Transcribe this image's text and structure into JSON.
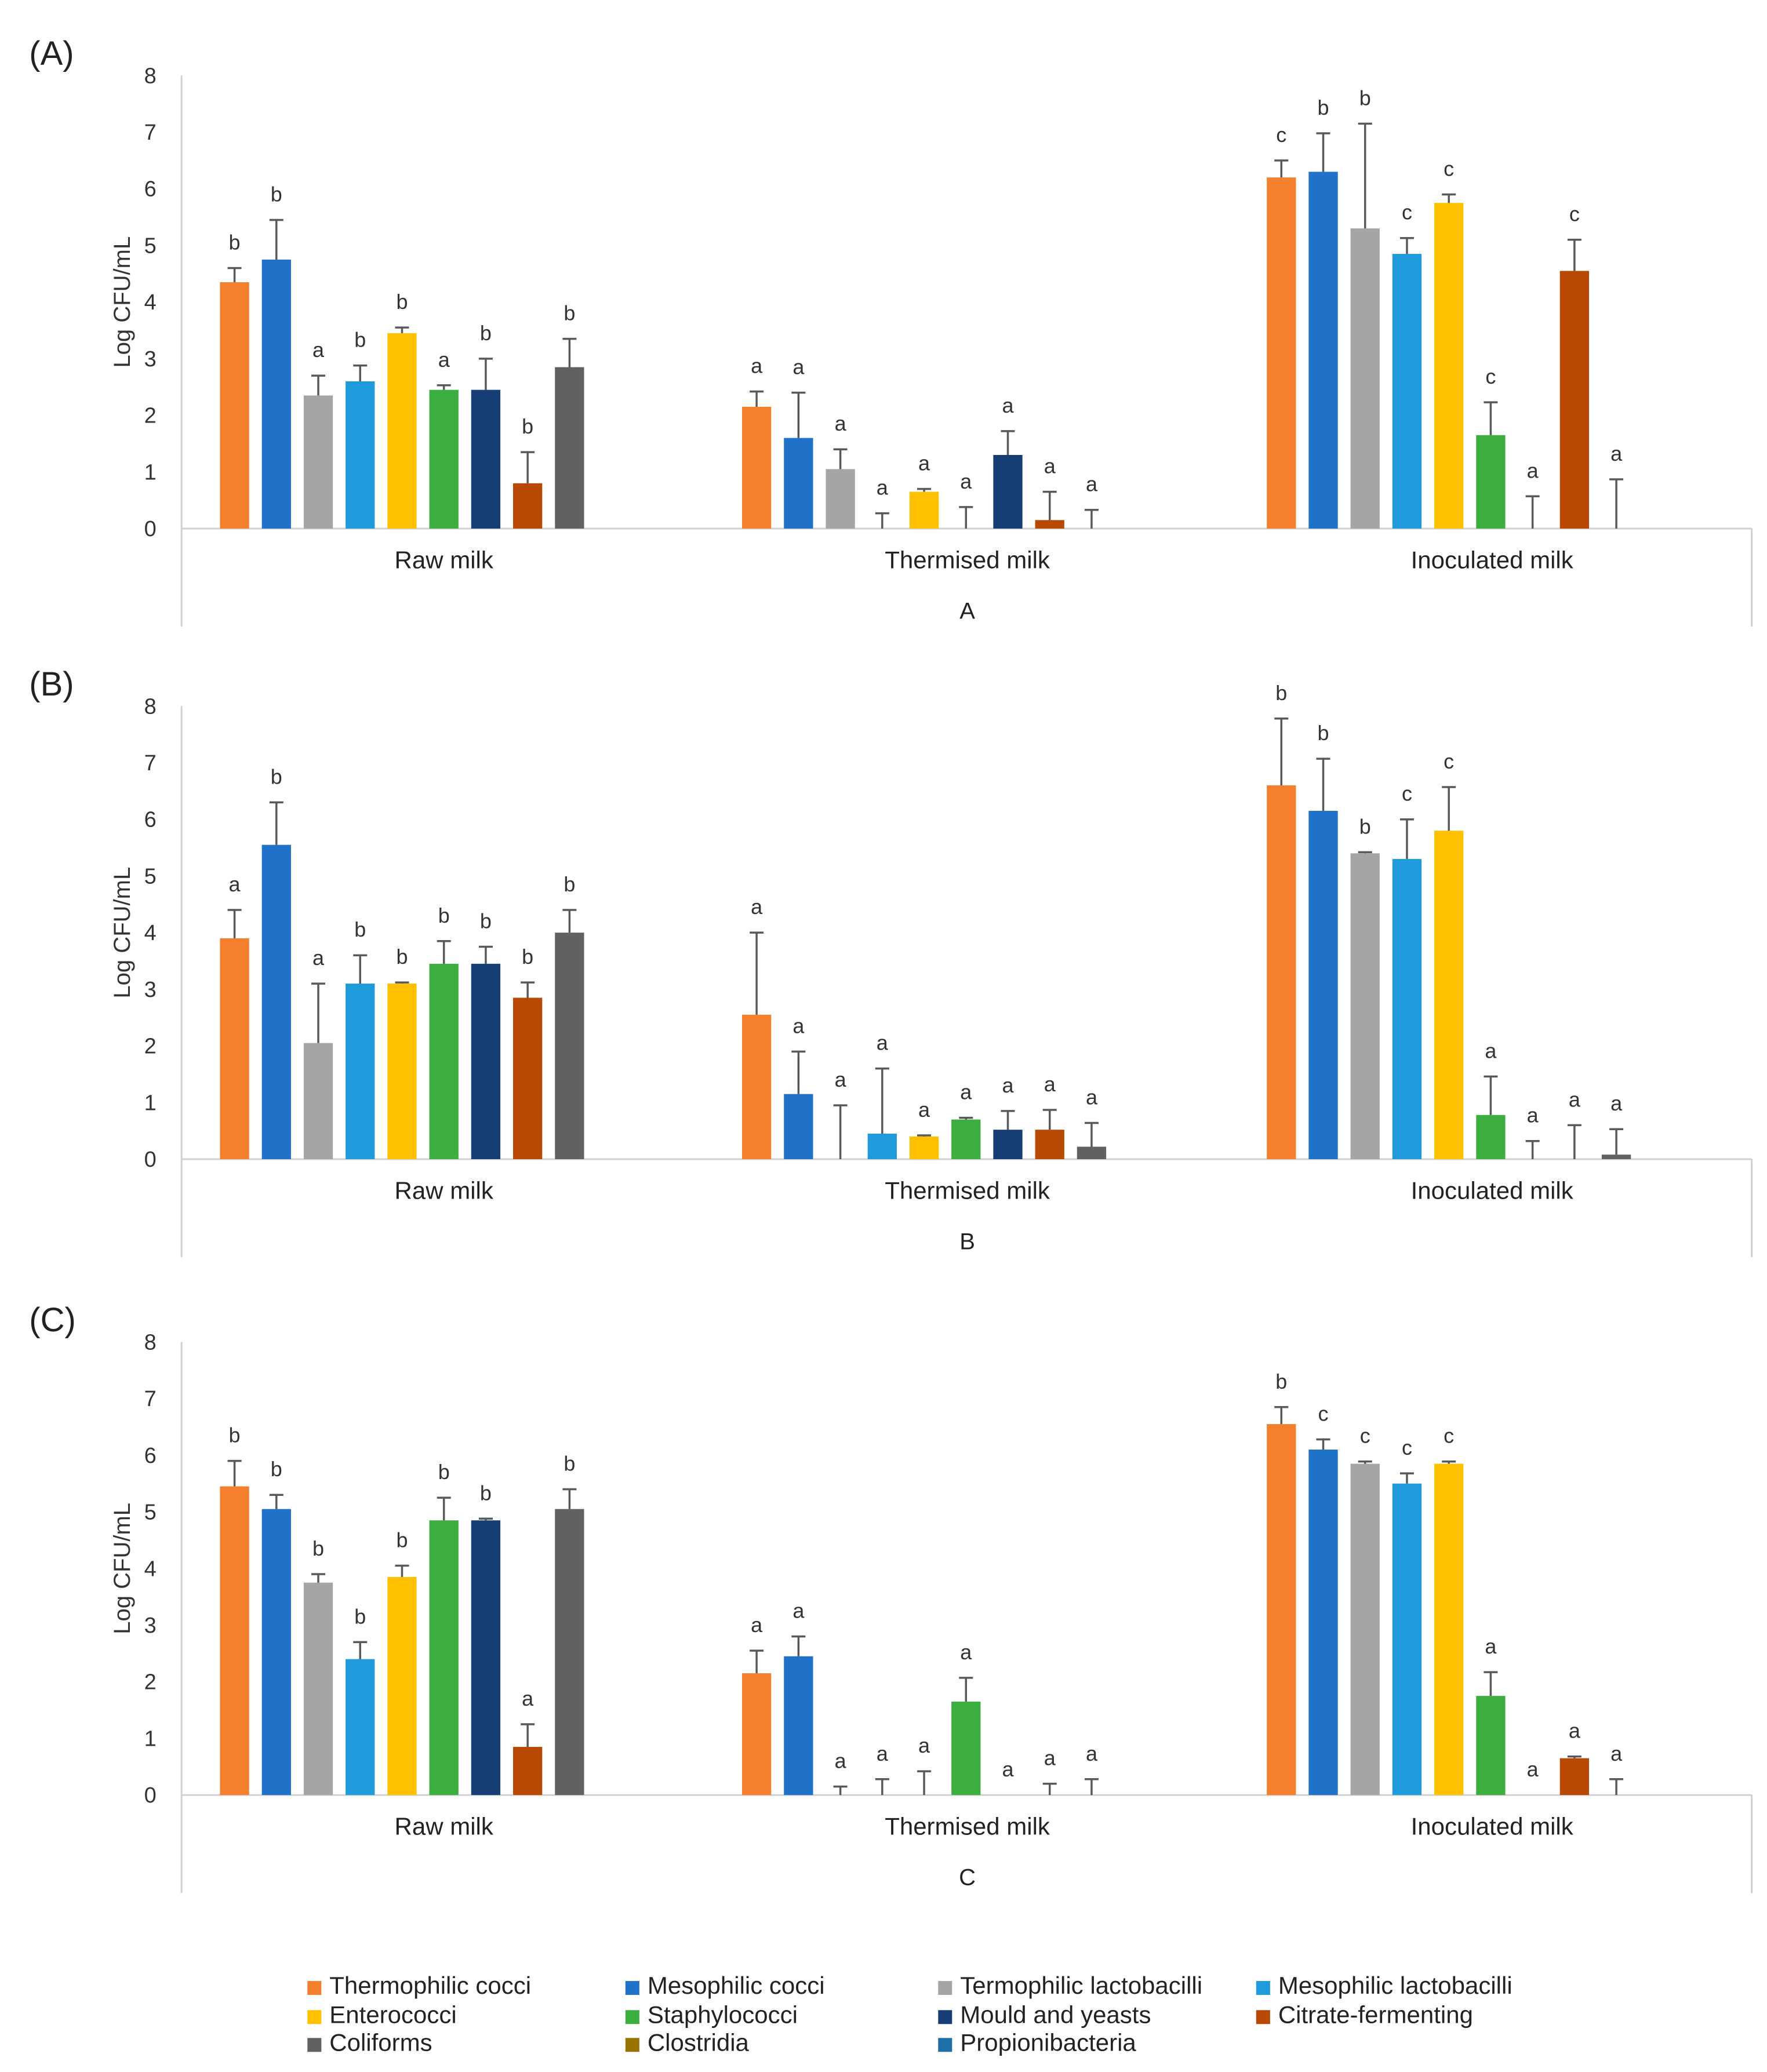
{
  "chart_data": {
    "type": "bar",
    "ylabel": "Log CFU/mL",
    "ylim": [
      0,
      8
    ],
    "yticks": [
      0,
      1,
      2,
      3,
      4,
      5,
      6,
      7,
      8
    ],
    "categories": [
      "Raw milk",
      "Thermised milk",
      "Inoculated milk"
    ],
    "legend": {
      "position": "bottom",
      "series": [
        {
          "name": "Thermophilic cocci",
          "color": "#f47f2d"
        },
        {
          "name": "Mesophilic cocci",
          "color": "#1f72c8"
        },
        {
          "name": "Termophilic lactobacilli",
          "color": "#a5a5a5"
        },
        {
          "name": "Mesophilic lactobacilli",
          "color": "#1f9bdb"
        },
        {
          "name": "Enterococci",
          "color": "#ffc000"
        },
        {
          "name": "Staphylococci",
          "color": "#3cae3f"
        },
        {
          "name": "Mould and yeasts",
          "color": "#173e74"
        },
        {
          "name": "Citrate-fermenting",
          "color": "#b84904"
        },
        {
          "name": "Coliforms",
          "color": "#616161"
        },
        {
          "name": "Clostridia",
          "color": "#9b7300"
        },
        {
          "name": "Propionibacteria",
          "color": "#1f6fa8"
        }
      ]
    },
    "bar_order": [
      0,
      1,
      2,
      3,
      4,
      5,
      6,
      7,
      8
    ],
    "panels": [
      {
        "label": "(A)",
        "sublabel": "A",
        "groups": [
          {
            "values": [
              4.35,
              4.75,
              2.35,
              2.6,
              3.45,
              2.45,
              2.45,
              0.8,
              2.85
            ],
            "errors": [
              0.25,
              0.7,
              0.35,
              0.28,
              0.1,
              0.08,
              0.55,
              0.55,
              0.5
            ],
            "letters": [
              "b",
              "b",
              "a",
              "b",
              "b",
              "a",
              "b",
              "b",
              "b"
            ]
          },
          {
            "values": [
              2.15,
              1.6,
              1.05,
              0,
              0.65,
              0,
              1.3,
              0.15,
              0
            ],
            "errors": [
              0.27,
              0.8,
              0.35,
              0.27,
              0.05,
              0.38,
              0.42,
              0.5,
              0.33
            ],
            "letters": [
              "a",
              "a",
              "a",
              "a",
              "a",
              "a",
              "a",
              "a",
              "a"
            ]
          },
          {
            "values": [
              6.2,
              6.3,
              5.3,
              4.85,
              5.75,
              1.65,
              0,
              4.55,
              0
            ],
            "errors": [
              0.3,
              0.68,
              1.85,
              0.28,
              0.15,
              0.58,
              0.57,
              0.55,
              0.87
            ],
            "letters": [
              "c",
              "b",
              "b",
              "c",
              "c",
              "c",
              "a",
              "c",
              "a"
            ]
          }
        ]
      },
      {
        "label": "(B)",
        "sublabel": "B",
        "groups": [
          {
            "values": [
              3.9,
              5.55,
              2.05,
              3.1,
              3.1,
              3.45,
              3.45,
              2.85,
              4.0
            ],
            "errors": [
              0.5,
              0.75,
              1.05,
              0.5,
              0.02,
              0.4,
              0.3,
              0.27,
              0.4
            ],
            "letters": [
              "a",
              "b",
              "a",
              "b",
              "b",
              "b",
              "b",
              "b",
              "b"
            ]
          },
          {
            "values": [
              2.55,
              1.15,
              0,
              0.45,
              0.4,
              0.7,
              0.52,
              0.52,
              0.22
            ],
            "errors": [
              1.45,
              0.75,
              0.95,
              1.15,
              0.02,
              0.03,
              0.33,
              0.35,
              0.42
            ],
            "letters": [
              "a",
              "a",
              "a",
              "a",
              "a",
              "a",
              "a",
              "a",
              "a"
            ]
          },
          {
            "values": [
              6.6,
              6.15,
              5.4,
              5.3,
              5.8,
              0.78,
              0,
              0,
              0.08
            ],
            "errors": [
              1.18,
              0.92,
              0.02,
              0.7,
              0.77,
              0.68,
              0.32,
              0.6,
              0.45
            ],
            "letters": [
              "b",
              "b",
              "b",
              "c",
              "c",
              "a",
              "a",
              "a",
              "a"
            ]
          }
        ]
      },
      {
        "label": "(C)",
        "sublabel": "C",
        "groups": [
          {
            "values": [
              5.45,
              5.05,
              3.75,
              2.4,
              3.85,
              4.85,
              4.85,
              0.85,
              5.05
            ],
            "errors": [
              0.45,
              0.25,
              0.15,
              0.3,
              0.2,
              0.4,
              0.03,
              0.4,
              0.35
            ],
            "letters": [
              "b",
              "b",
              "b",
              "b",
              "b",
              "b",
              "b",
              "a",
              "b"
            ]
          },
          {
            "values": [
              2.15,
              2.45,
              0,
              0,
              0,
              1.65,
              0,
              0,
              0
            ],
            "errors": [
              0.4,
              0.35,
              0.15,
              0.28,
              0.42,
              0.42,
              0,
              0.2,
              0.28
            ],
            "letters": [
              "a",
              "a",
              "a",
              "a",
              "a",
              "a",
              "a",
              "a",
              "a"
            ]
          },
          {
            "values": [
              6.55,
              6.1,
              5.85,
              5.5,
              5.85,
              1.75,
              0,
              0.65,
              0
            ],
            "errors": [
              0.3,
              0.18,
              0.04,
              0.18,
              0.04,
              0.42,
              0,
              0.03,
              0.28
            ],
            "letters": [
              "b",
              "c",
              "c",
              "c",
              "c",
              "a",
              "a",
              "a",
              "a"
            ]
          }
        ]
      }
    ]
  }
}
